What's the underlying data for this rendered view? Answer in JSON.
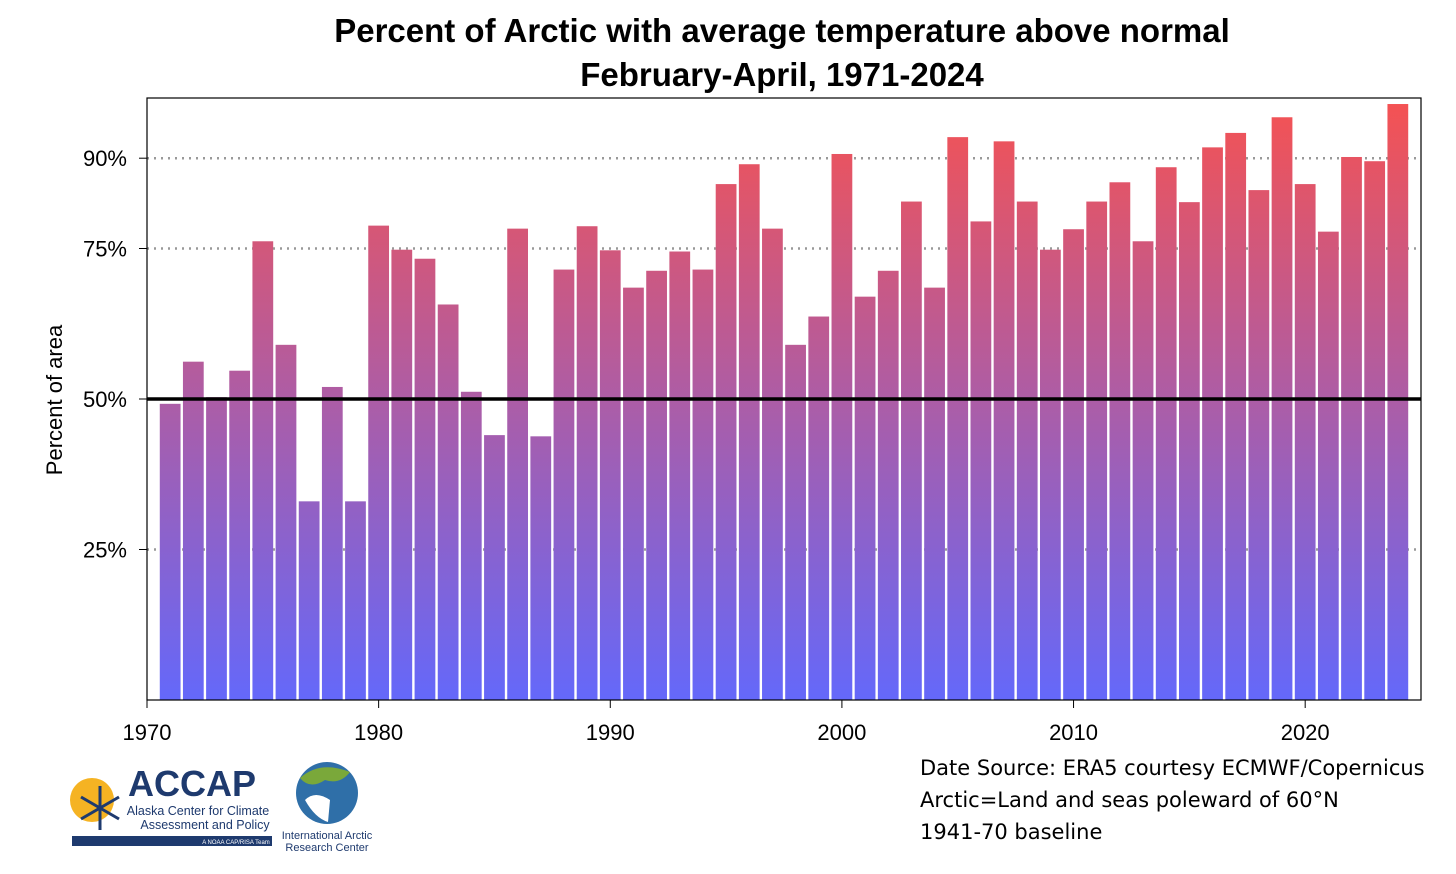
{
  "chart_data": {
    "type": "bar",
    "title": "Percent of Arctic with average temperature above normal",
    "subtitle": "February-April, 1971-2024",
    "xlabel": "",
    "ylabel": "Percent of area",
    "x": [
      1971,
      1972,
      1973,
      1974,
      1975,
      1976,
      1977,
      1978,
      1979,
      1980,
      1981,
      1982,
      1983,
      1984,
      1985,
      1986,
      1987,
      1988,
      1989,
      1990,
      1991,
      1992,
      1993,
      1994,
      1995,
      1996,
      1997,
      1998,
      1999,
      2000,
      2001,
      2002,
      2003,
      2004,
      2005,
      2006,
      2007,
      2008,
      2009,
      2010,
      2011,
      2012,
      2013,
      2014,
      2015,
      2016,
      2017,
      2018,
      2019,
      2020,
      2021,
      2022,
      2023,
      2024
    ],
    "values": [
      49.2,
      56.2,
      50.3,
      54.7,
      76.2,
      59,
      33,
      52,
      33,
      78.8,
      74.8,
      73.3,
      65.7,
      51.2,
      44,
      78.3,
      43.8,
      71.5,
      78.7,
      74.7,
      68.5,
      71.3,
      74.5,
      71.5,
      85.7,
      89,
      78.3,
      59,
      63.7,
      90.7,
      67,
      71.3,
      82.8,
      68.5,
      93.5,
      79.5,
      92.8,
      82.8,
      74.8,
      78.2,
      82.8,
      86,
      76.2,
      88.5,
      82.7,
      91.8,
      94.2,
      84.7,
      96.8,
      85.7,
      77.8,
      90.2,
      89.5,
      99
    ],
    "xlim": [
      1970,
      2025
    ],
    "ylim": [
      0,
      100
    ],
    "xticks": [
      1970,
      1980,
      1990,
      2000,
      2010,
      2020
    ],
    "yticks": [
      25,
      50,
      75,
      90
    ],
    "ytick_labels": [
      "25%",
      "50%",
      "75%",
      "90%"
    ],
    "reference_line": 50,
    "grid": "dotted at 25%, 75%, 90%",
    "colors": {
      "low": "#6468fa",
      "high": "#f55252",
      "gridline": "#999999"
    }
  },
  "notes": [
    "Date Source: ERA5 courtesy ECMWF/Copernicus",
    "Arctic=Land and seas poleward of 60°N",
    "1941-70 baseline"
  ],
  "logos": {
    "accap": {
      "name": "ACCAP",
      "line1": "Alaska Center for Climate",
      "line2": "Assessment and Policy",
      "tagline": "A NOAA CAP/RISA Team"
    },
    "iarc": {
      "line1": "International Arctic",
      "line2": "Research Center"
    }
  }
}
